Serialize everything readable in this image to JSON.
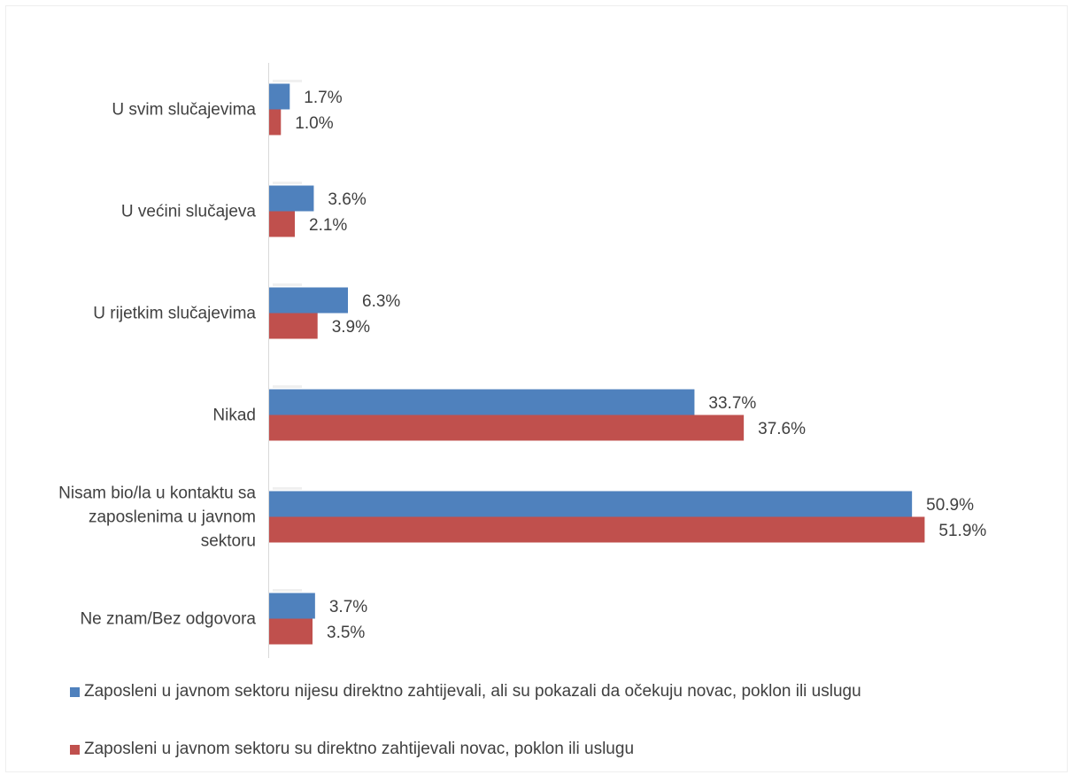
{
  "chart_data": {
    "type": "bar",
    "orientation": "horizontal",
    "categories": [
      "U svim slučajevima",
      "U većini slučajeva",
      "U rijetkim slučajevima",
      "Nikad",
      "Nisam bio/la u kontaktu sa zaposlenima u javnom sektoru",
      "Ne znam/Bez odgovora"
    ],
    "category_lines": [
      [
        "U svim slučajevima"
      ],
      [
        "U većini slučajeva"
      ],
      [
        "U rijetkim slučajevima"
      ],
      [
        "Nikad"
      ],
      [
        "Nisam bio/la u kontaktu sa",
        "zaposlenima u javnom",
        "sektoru"
      ],
      [
        "Ne znam/Bez odgovora"
      ]
    ],
    "series": [
      {
        "name": "Zaposleni u javnom sektoru nijesu direktno zahtijevali, ali su pokazali da očekuju novac, poklon ili uslugu",
        "color": "#4F81BD",
        "values": [
          1.7,
          3.6,
          6.3,
          33.7,
          50.9,
          3.7
        ],
        "labels": [
          "1.7%",
          "3.6%",
          "6.3%",
          "33.7%",
          "50.9%",
          "3.7%"
        ]
      },
      {
        "name": "Zaposleni u javnom sektoru su direktno zahtijevali novac, poklon ili uslugu",
        "color": "#C0504D",
        "values": [
          1.0,
          2.1,
          3.9,
          37.6,
          51.9,
          3.5
        ],
        "labels": [
          "1.0%",
          "2.1%",
          "3.9%",
          "37.6%",
          "51.9%",
          "3.5%"
        ]
      }
    ],
    "xlim": [
      0,
      56
    ],
    "grid": false,
    "legend_position": "bottom",
    "axis_color": "#D9D9D9",
    "text_color": "#404040"
  }
}
